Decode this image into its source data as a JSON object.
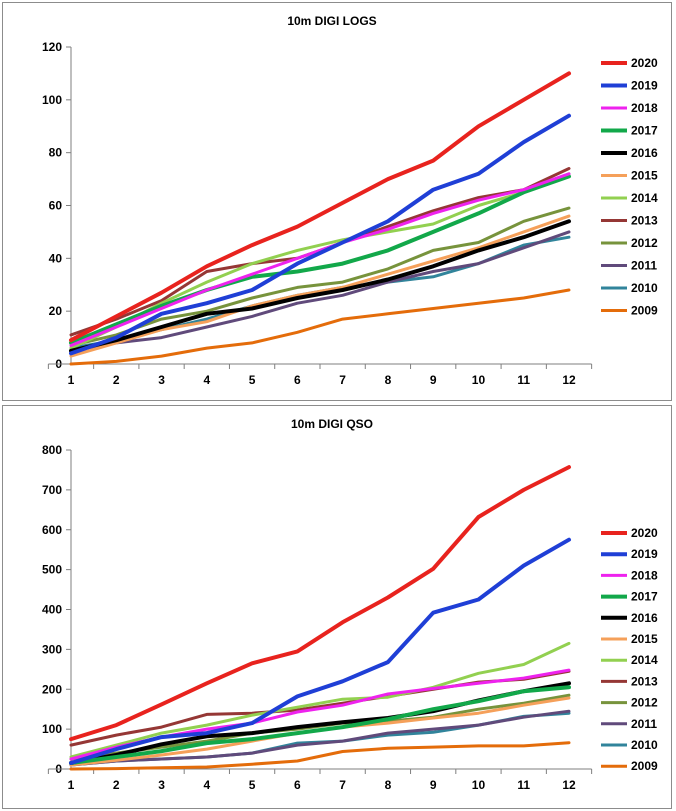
{
  "chart_data": [
    {
      "type": "line",
      "title": "10m DIGI LOGS",
      "xlabel": "",
      "ylabel": "",
      "x": [
        1,
        2,
        3,
        4,
        5,
        6,
        7,
        8,
        9,
        10,
        11,
        12
      ],
      "ylim": [
        0,
        120
      ],
      "yticks": [
        0,
        20,
        40,
        60,
        80,
        100,
        120
      ],
      "grid": false,
      "legend": "right",
      "series": [
        {
          "name": "2020",
          "color": "#e8231e",
          "values": [
            9,
            18,
            27,
            37,
            45,
            52,
            61,
            70,
            77,
            90,
            100,
            110
          ]
        },
        {
          "name": "2019",
          "color": "#1f3fd6",
          "values": [
            4,
            10,
            19,
            23,
            28,
            38,
            46,
            54,
            66,
            72,
            84,
            94
          ]
        },
        {
          "name": "2018",
          "color": "#ee22ee",
          "values": [
            7,
            14,
            21,
            28,
            34,
            40,
            46,
            51,
            57,
            62,
            66,
            72
          ]
        },
        {
          "name": "2017",
          "color": "#12a84a",
          "values": [
            8,
            15,
            22,
            28,
            33,
            35,
            38,
            43,
            50,
            57,
            65,
            71
          ]
        },
        {
          "name": "2016",
          "color": "#000000",
          "values": [
            5,
            9,
            14,
            19,
            21,
            25,
            28,
            32,
            37,
            43,
            48,
            54
          ]
        },
        {
          "name": "2015",
          "color": "#f5a05a",
          "values": [
            3,
            8,
            13,
            16,
            22,
            26,
            29,
            34,
            39,
            44,
            50,
            56
          ]
        },
        {
          "name": "2014",
          "color": "#92d050",
          "values": [
            6,
            14,
            23,
            31,
            38,
            43,
            47,
            50,
            53,
            60,
            65,
            72
          ]
        },
        {
          "name": "2013",
          "color": "#953735",
          "values": [
            11,
            17,
            24,
            35,
            38,
            40,
            46,
            52,
            58,
            63,
            66,
            74
          ]
        },
        {
          "name": "2012",
          "color": "#77933c",
          "values": [
            7,
            11,
            17,
            20,
            25,
            29,
            31,
            36,
            43,
            46,
            54,
            59
          ]
        },
        {
          "name": "2011",
          "color": "#604a7b",
          "values": [
            5,
            8,
            10,
            14,
            18,
            23,
            26,
            31,
            35,
            38,
            44,
            50
          ]
        },
        {
          "name": "2010",
          "color": "#31849b",
          "values": [
            6,
            9,
            13,
            17,
            22,
            26,
            29,
            31,
            33,
            38,
            45,
            48
          ]
        },
        {
          "name": "2009",
          "color": "#e46c0a",
          "values": [
            0,
            1,
            3,
            6,
            8,
            12,
            17,
            19,
            21,
            23,
            25,
            28
          ]
        }
      ]
    },
    {
      "type": "line",
      "title": "10m DIGI QSO",
      "xlabel": "",
      "ylabel": "",
      "x": [
        1,
        2,
        3,
        4,
        5,
        6,
        7,
        8,
        9,
        10,
        11,
        12
      ],
      "ylim": [
        0,
        800
      ],
      "yticks": [
        0,
        100,
        200,
        300,
        400,
        500,
        600,
        700,
        800
      ],
      "grid": false,
      "legend": "right",
      "series": [
        {
          "name": "2020",
          "color": "#e8231e",
          "values": [
            75,
            110,
            162,
            215,
            265,
            295,
            368,
            430,
            502,
            632,
            700,
            757
          ]
        },
        {
          "name": "2019",
          "color": "#1f3fd6",
          "values": [
            15,
            50,
            80,
            90,
            115,
            182,
            220,
            268,
            392,
            425,
            510,
            575
          ]
        },
        {
          "name": "2018",
          "color": "#ee22ee",
          "values": [
            25,
            55,
            80,
            100,
            115,
            143,
            160,
            188,
            202,
            215,
            228,
            248
          ]
        },
        {
          "name": "2017",
          "color": "#12a84a",
          "values": [
            15,
            30,
            45,
            65,
            75,
            90,
            105,
            125,
            150,
            170,
            195,
            205
          ]
        },
        {
          "name": "2016",
          "color": "#000000",
          "values": [
            15,
            35,
            62,
            82,
            90,
            105,
            117,
            128,
            145,
            172,
            195,
            215
          ]
        },
        {
          "name": "2015",
          "color": "#f5a05a",
          "values": [
            10,
            22,
            35,
            50,
            70,
            90,
            105,
            115,
            128,
            140,
            160,
            178
          ]
        },
        {
          "name": "2014",
          "color": "#92d050",
          "values": [
            30,
            60,
            90,
            110,
            135,
            155,
            175,
            180,
            205,
            240,
            262,
            315
          ]
        },
        {
          "name": "2013",
          "color": "#953735",
          "values": [
            60,
            85,
            105,
            137,
            140,
            148,
            165,
            182,
            200,
            218,
            225,
            245
          ]
        },
        {
          "name": "2012",
          "color": "#77933c",
          "values": [
            25,
            40,
            55,
            70,
            90,
            100,
            115,
            120,
            130,
            150,
            165,
            185
          ]
        },
        {
          "name": "2011",
          "color": "#604a7b",
          "values": [
            10,
            20,
            25,
            30,
            40,
            60,
            70,
            90,
            100,
            110,
            130,
            145
          ]
        },
        {
          "name": "2010",
          "color": "#31849b",
          "values": [
            10,
            20,
            25,
            30,
            40,
            65,
            70,
            85,
            92,
            110,
            132,
            140
          ]
        },
        {
          "name": "2009",
          "color": "#e46c0a",
          "values": [
            0,
            1,
            3,
            5,
            12,
            20,
            44,
            52,
            55,
            58,
            58,
            66
          ]
        }
      ]
    }
  ]
}
